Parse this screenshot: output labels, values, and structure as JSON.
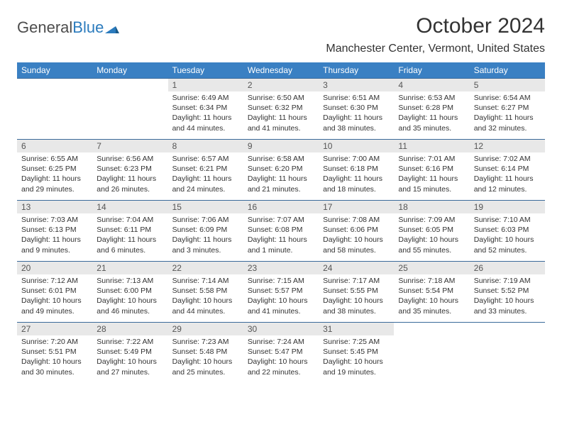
{
  "brand": {
    "name_left": "General",
    "name_right": "Blue"
  },
  "title": "October 2024",
  "location": "Manchester Center, Vermont, United States",
  "colors": {
    "header_bg": "#3a80c3",
    "header_text": "#ffffff",
    "row_divider": "#3a6a9a",
    "daynum_bg": "#e8e8e8",
    "daynum_text": "#555555",
    "body_text": "#333333",
    "logo_blue": "#2b7bbd",
    "logo_gray": "#4d4d4d",
    "background": "#ffffff"
  },
  "typography": {
    "title_fontsize_pt": 22,
    "location_fontsize_pt": 12,
    "header_fontsize_pt": 9,
    "daynum_fontsize_pt": 9,
    "body_fontsize_pt": 8
  },
  "weekdays": [
    "Sunday",
    "Monday",
    "Tuesday",
    "Wednesday",
    "Thursday",
    "Friday",
    "Saturday"
  ],
  "labels": {
    "sunrise": "Sunrise:",
    "sunset": "Sunset:",
    "daylight": "Daylight:"
  },
  "weeks": [
    [
      null,
      null,
      {
        "n": "1",
        "sr": "6:49 AM",
        "ss": "6:34 PM",
        "dl": "11 hours and 44 minutes."
      },
      {
        "n": "2",
        "sr": "6:50 AM",
        "ss": "6:32 PM",
        "dl": "11 hours and 41 minutes."
      },
      {
        "n": "3",
        "sr": "6:51 AM",
        "ss": "6:30 PM",
        "dl": "11 hours and 38 minutes."
      },
      {
        "n": "4",
        "sr": "6:53 AM",
        "ss": "6:28 PM",
        "dl": "11 hours and 35 minutes."
      },
      {
        "n": "5",
        "sr": "6:54 AM",
        "ss": "6:27 PM",
        "dl": "11 hours and 32 minutes."
      }
    ],
    [
      {
        "n": "6",
        "sr": "6:55 AM",
        "ss": "6:25 PM",
        "dl": "11 hours and 29 minutes."
      },
      {
        "n": "7",
        "sr": "6:56 AM",
        "ss": "6:23 PM",
        "dl": "11 hours and 26 minutes."
      },
      {
        "n": "8",
        "sr": "6:57 AM",
        "ss": "6:21 PM",
        "dl": "11 hours and 24 minutes."
      },
      {
        "n": "9",
        "sr": "6:58 AM",
        "ss": "6:20 PM",
        "dl": "11 hours and 21 minutes."
      },
      {
        "n": "10",
        "sr": "7:00 AM",
        "ss": "6:18 PM",
        "dl": "11 hours and 18 minutes."
      },
      {
        "n": "11",
        "sr": "7:01 AM",
        "ss": "6:16 PM",
        "dl": "11 hours and 15 minutes."
      },
      {
        "n": "12",
        "sr": "7:02 AM",
        "ss": "6:14 PM",
        "dl": "11 hours and 12 minutes."
      }
    ],
    [
      {
        "n": "13",
        "sr": "7:03 AM",
        "ss": "6:13 PM",
        "dl": "11 hours and 9 minutes."
      },
      {
        "n": "14",
        "sr": "7:04 AM",
        "ss": "6:11 PM",
        "dl": "11 hours and 6 minutes."
      },
      {
        "n": "15",
        "sr": "7:06 AM",
        "ss": "6:09 PM",
        "dl": "11 hours and 3 minutes."
      },
      {
        "n": "16",
        "sr": "7:07 AM",
        "ss": "6:08 PM",
        "dl": "11 hours and 1 minute."
      },
      {
        "n": "17",
        "sr": "7:08 AM",
        "ss": "6:06 PM",
        "dl": "10 hours and 58 minutes."
      },
      {
        "n": "18",
        "sr": "7:09 AM",
        "ss": "6:05 PM",
        "dl": "10 hours and 55 minutes."
      },
      {
        "n": "19",
        "sr": "7:10 AM",
        "ss": "6:03 PM",
        "dl": "10 hours and 52 minutes."
      }
    ],
    [
      {
        "n": "20",
        "sr": "7:12 AM",
        "ss": "6:01 PM",
        "dl": "10 hours and 49 minutes."
      },
      {
        "n": "21",
        "sr": "7:13 AM",
        "ss": "6:00 PM",
        "dl": "10 hours and 46 minutes."
      },
      {
        "n": "22",
        "sr": "7:14 AM",
        "ss": "5:58 PM",
        "dl": "10 hours and 44 minutes."
      },
      {
        "n": "23",
        "sr": "7:15 AM",
        "ss": "5:57 PM",
        "dl": "10 hours and 41 minutes."
      },
      {
        "n": "24",
        "sr": "7:17 AM",
        "ss": "5:55 PM",
        "dl": "10 hours and 38 minutes."
      },
      {
        "n": "25",
        "sr": "7:18 AM",
        "ss": "5:54 PM",
        "dl": "10 hours and 35 minutes."
      },
      {
        "n": "26",
        "sr": "7:19 AM",
        "ss": "5:52 PM",
        "dl": "10 hours and 33 minutes."
      }
    ],
    [
      {
        "n": "27",
        "sr": "7:20 AM",
        "ss": "5:51 PM",
        "dl": "10 hours and 30 minutes."
      },
      {
        "n": "28",
        "sr": "7:22 AM",
        "ss": "5:49 PM",
        "dl": "10 hours and 27 minutes."
      },
      {
        "n": "29",
        "sr": "7:23 AM",
        "ss": "5:48 PM",
        "dl": "10 hours and 25 minutes."
      },
      {
        "n": "30",
        "sr": "7:24 AM",
        "ss": "5:47 PM",
        "dl": "10 hours and 22 minutes."
      },
      {
        "n": "31",
        "sr": "7:25 AM",
        "ss": "5:45 PM",
        "dl": "10 hours and 19 minutes."
      },
      null,
      null
    ]
  ]
}
